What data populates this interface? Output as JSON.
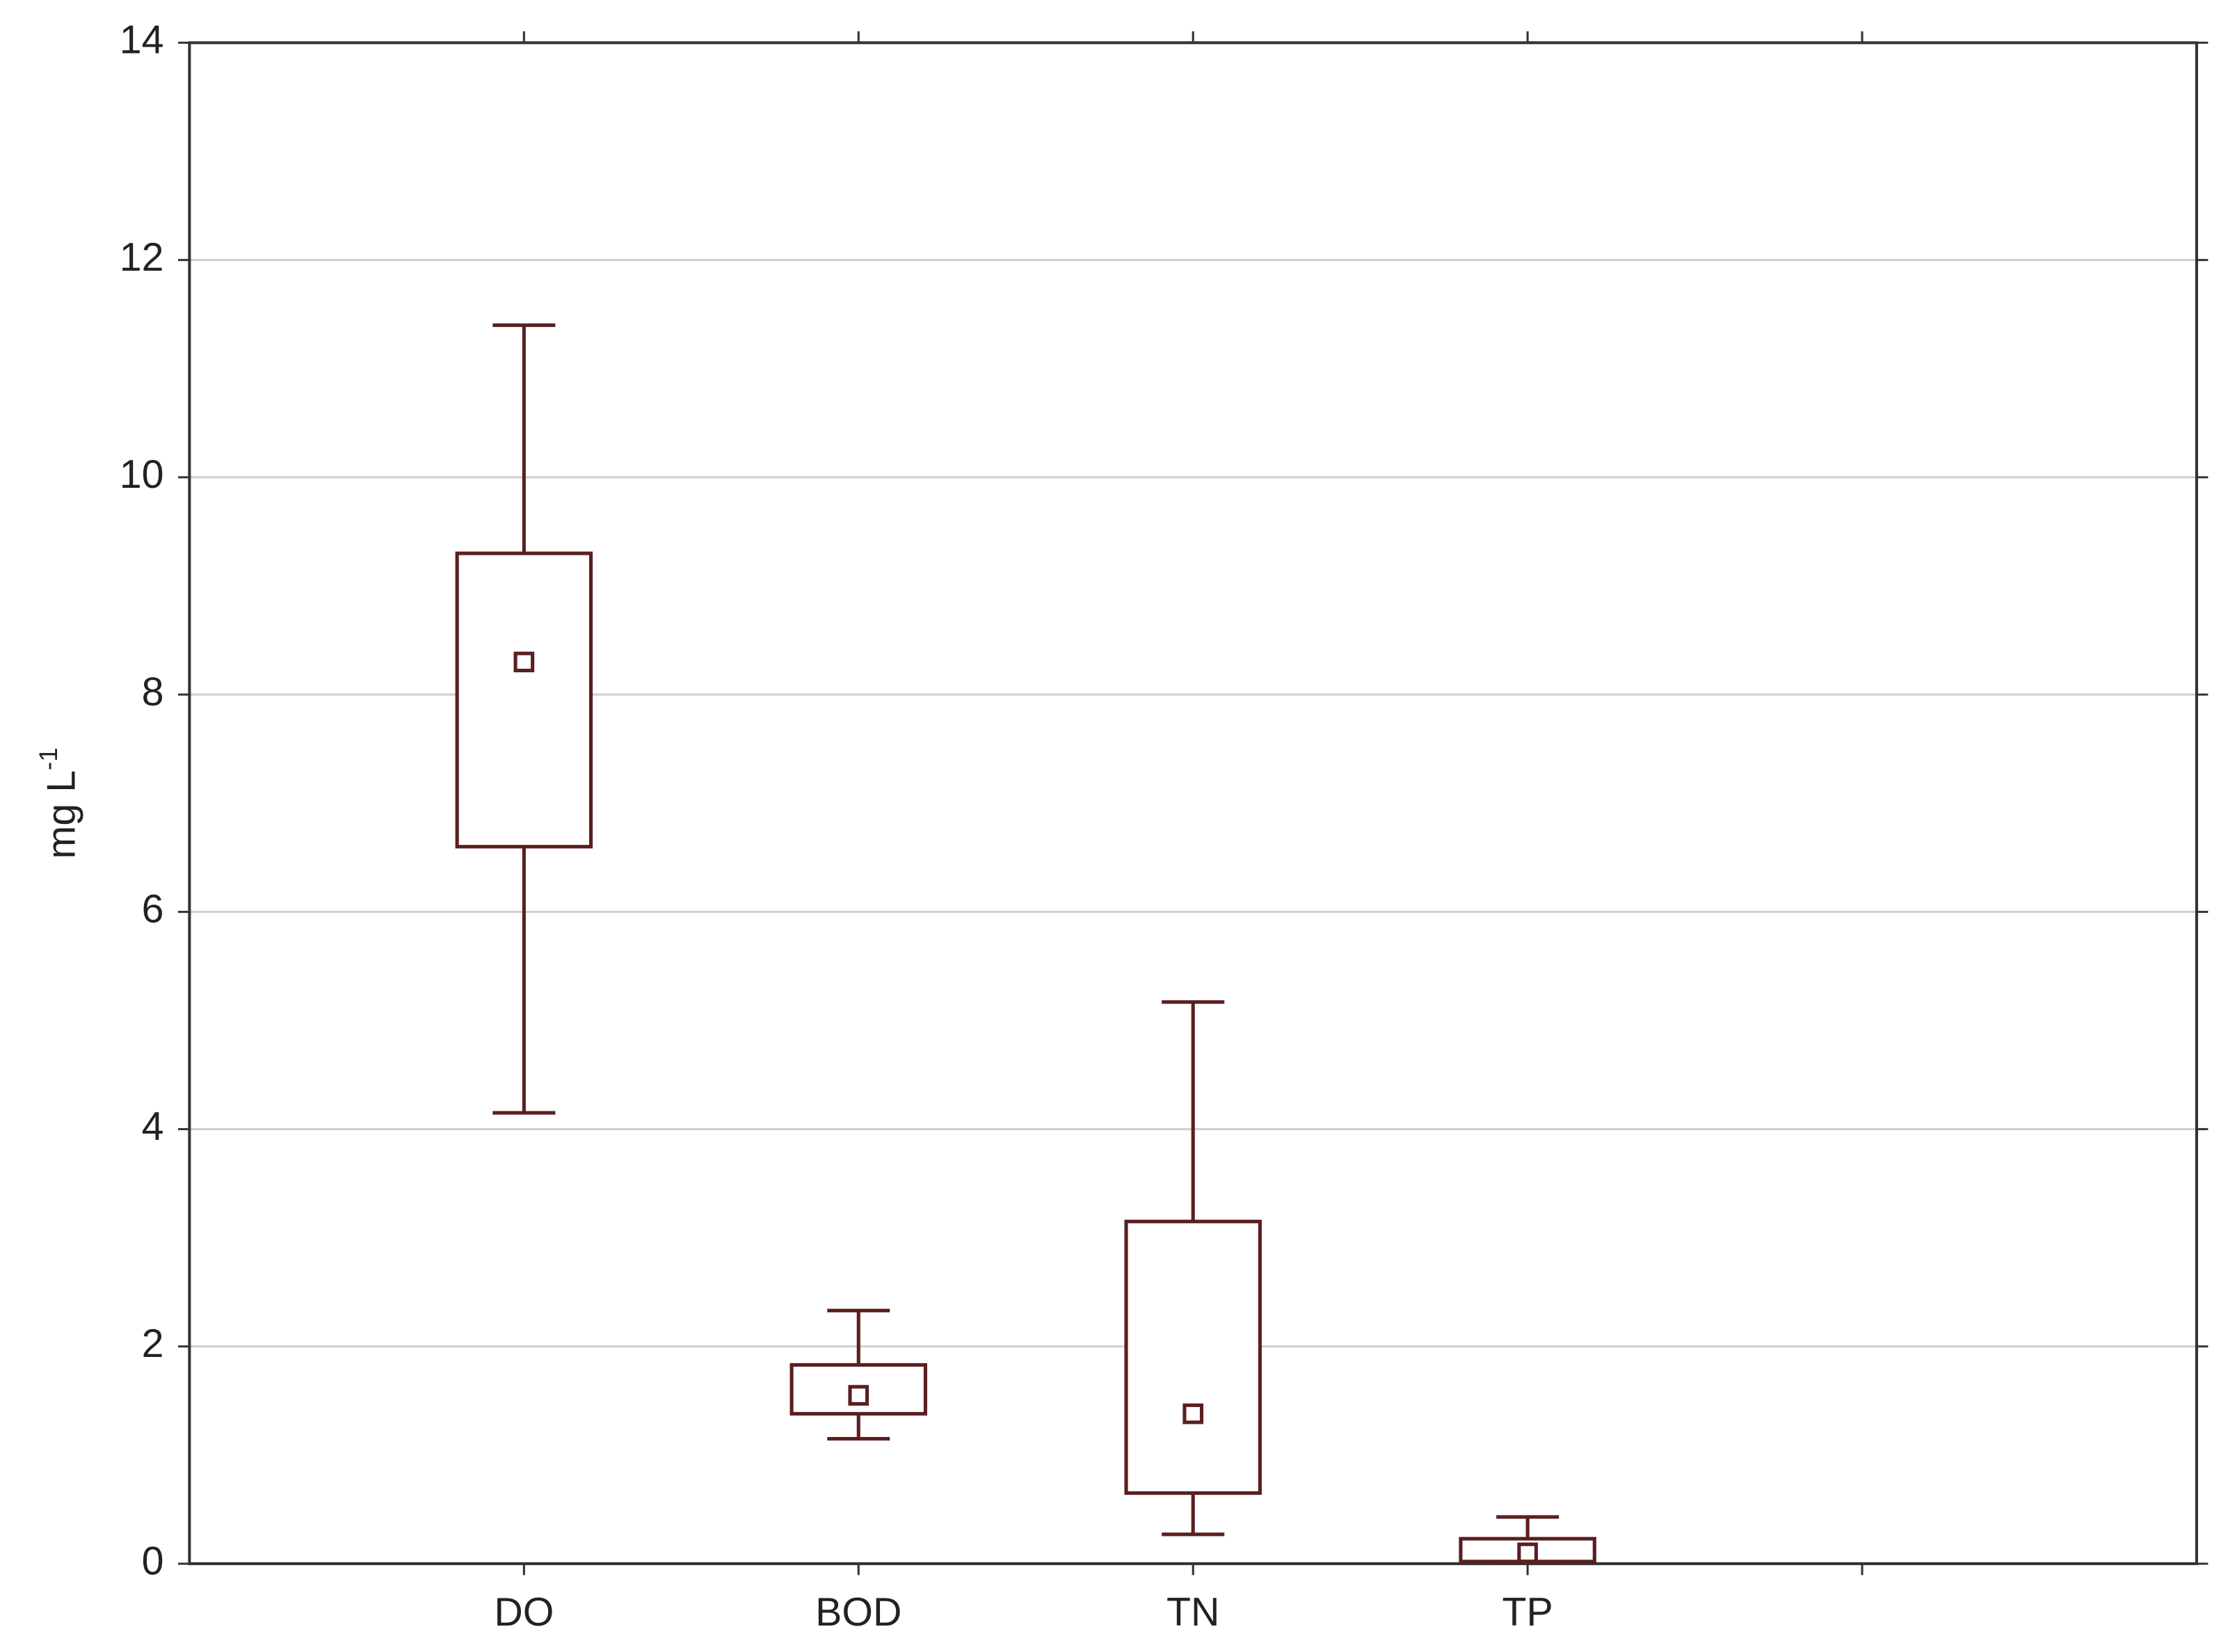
{
  "chart_data": {
    "type": "box",
    "y_label": {
      "text": "mg L",
      "superscript": "-1"
    },
    "categories": [
      "DO",
      "BOD",
      "TN",
      "TP",
      null
    ],
    "whisker_low": [
      4.15,
      1.15,
      0.27,
      0.01,
      null
    ],
    "box_low": [
      6.6,
      1.38,
      0.65,
      0.02,
      null
    ],
    "center": [
      8.3,
      1.55,
      1.38,
      0.1,
      null
    ],
    "box_high": [
      9.3,
      1.83,
      3.15,
      0.23,
      null
    ],
    "whisker_high": [
      11.4,
      2.33,
      5.17,
      0.43,
      null
    ],
    "color": "#5a1f1f",
    "ylim": [
      0,
      14
    ],
    "yticks": [
      0,
      2,
      4,
      6,
      8,
      10,
      12,
      14
    ],
    "grid": true
  }
}
